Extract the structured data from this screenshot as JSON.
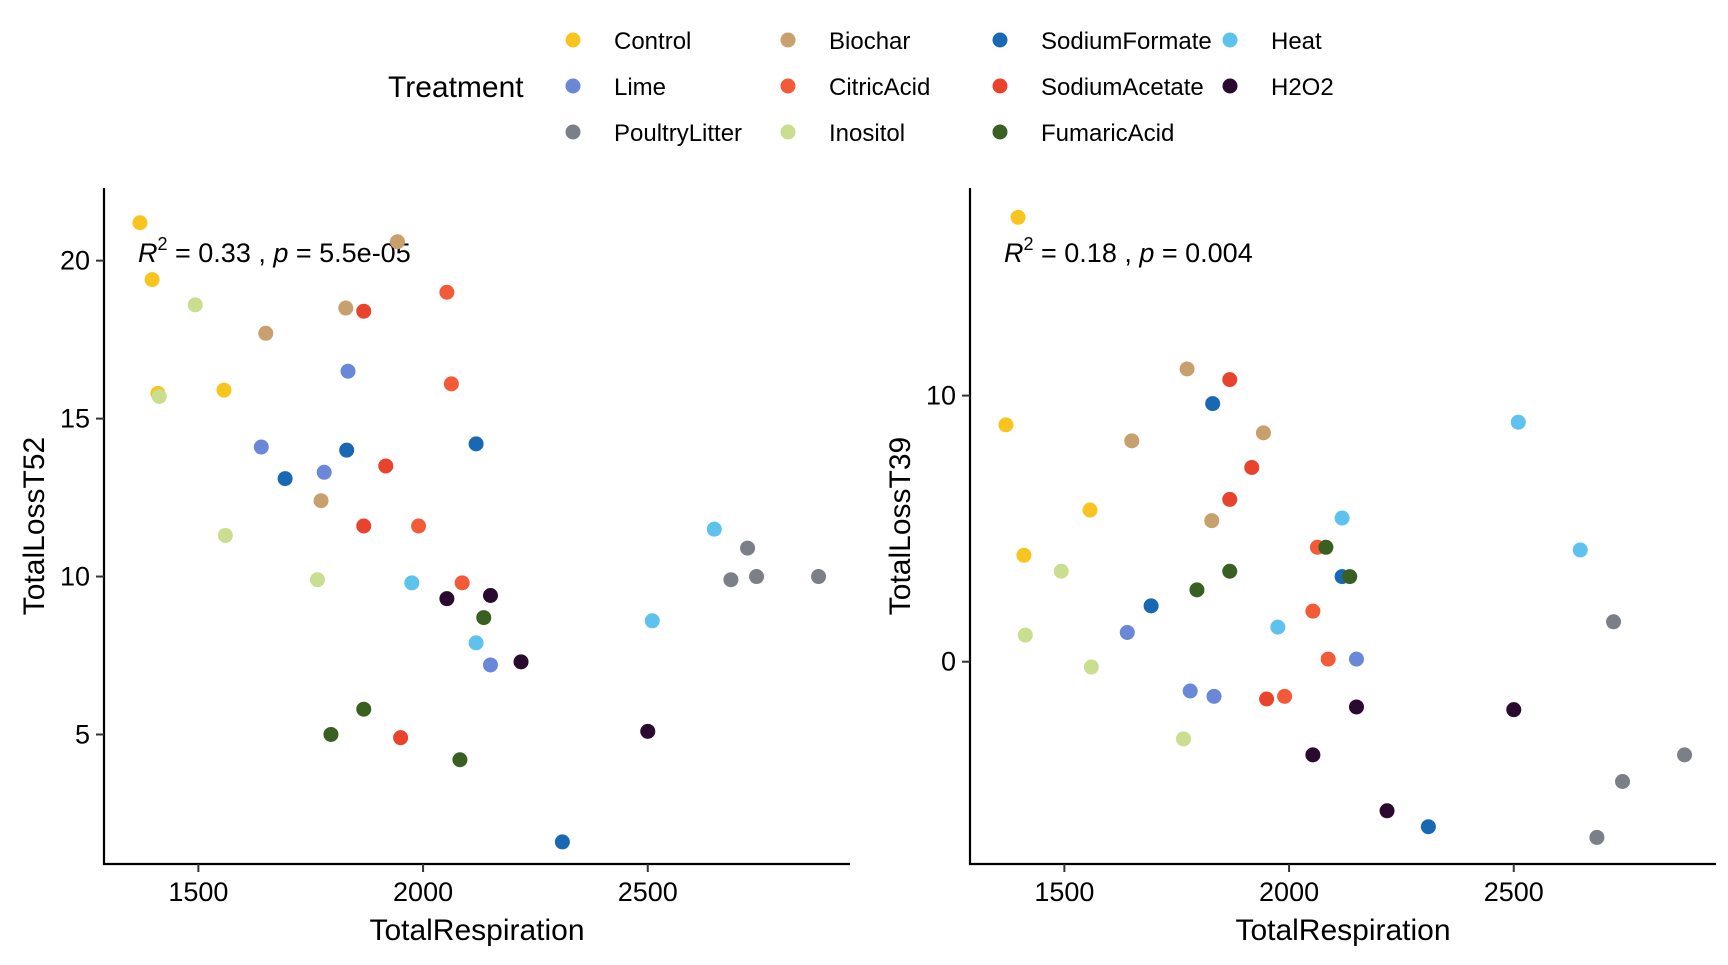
{
  "legend": {
    "title": "Treatment",
    "entries": [
      {
        "name": "Control",
        "color": "#F8C520"
      },
      {
        "name": "Lime",
        "color": "#6A87D8"
      },
      {
        "name": "PoultryLitter",
        "color": "#7A7F88"
      },
      {
        "name": "Biochar",
        "color": "#C7A06E"
      },
      {
        "name": "CitricAcid",
        "color": "#F35A38"
      },
      {
        "name": "Inositol",
        "color": "#C9DE8E"
      },
      {
        "name": "SodiumFormate",
        "color": "#1868B4"
      },
      {
        "name": "SodiumAcetate",
        "color": "#E9432E"
      },
      {
        "name": "FumaricAcid",
        "color": "#3A5F22"
      },
      {
        "name": "Heat",
        "color": "#5EC2EE"
      },
      {
        "name": "H2O2",
        "color": "#2A0A2E"
      }
    ]
  },
  "chart_data": [
    {
      "type": "scatter",
      "xlabel": "TotalRespiration",
      "ylabel": "TotalLossT52",
      "xlim": [
        1290,
        2950
      ],
      "ylim": [
        0.9,
        22.3
      ],
      "xticks": [
        1500,
        2000,
        2500
      ],
      "yticks": [
        5,
        10,
        15,
        20
      ],
      "annotation": {
        "r2_label": "R",
        "r2_sup": "2",
        "r2_value": " = 0.33 , ",
        "p_label": "p",
        "p_value": " = 5.5e-05"
      },
      "points": [
        {
          "x": 1370,
          "y": 21.2,
          "group": "Control"
        },
        {
          "x": 1397,
          "y": 19.4,
          "group": "Control"
        },
        {
          "x": 1557,
          "y": 15.9,
          "group": "Control"
        },
        {
          "x": 1410,
          "y": 15.8,
          "group": "Control"
        },
        {
          "x": 1493,
          "y": 18.6,
          "group": "Inositol"
        },
        {
          "x": 1413,
          "y": 15.7,
          "group": "Inositol"
        },
        {
          "x": 1560,
          "y": 11.3,
          "group": "Inositol"
        },
        {
          "x": 1765,
          "y": 9.9,
          "group": "Inositol"
        },
        {
          "x": 1943,
          "y": 20.6,
          "group": "Biochar"
        },
        {
          "x": 1828,
          "y": 18.5,
          "group": "Biochar"
        },
        {
          "x": 1650,
          "y": 17.7,
          "group": "Biochar"
        },
        {
          "x": 1773,
          "y": 12.4,
          "group": "Biochar"
        },
        {
          "x": 2053,
          "y": 19.0,
          "group": "CitricAcid"
        },
        {
          "x": 2063,
          "y": 16.1,
          "group": "CitricAcid"
        },
        {
          "x": 1990,
          "y": 11.6,
          "group": "CitricAcid"
        },
        {
          "x": 2087,
          "y": 9.8,
          "group": "CitricAcid"
        },
        {
          "x": 1868,
          "y": 18.4,
          "group": "SodiumAcetate"
        },
        {
          "x": 1917,
          "y": 13.5,
          "group": "SodiumAcetate"
        },
        {
          "x": 1868,
          "y": 11.6,
          "group": "SodiumAcetate"
        },
        {
          "x": 1950,
          "y": 4.9,
          "group": "SodiumAcetate"
        },
        {
          "x": 1833,
          "y": 16.5,
          "group": "Lime"
        },
        {
          "x": 1640,
          "y": 14.1,
          "group": "Lime"
        },
        {
          "x": 1780,
          "y": 13.3,
          "group": "Lime"
        },
        {
          "x": 2150,
          "y": 7.2,
          "group": "Lime"
        },
        {
          "x": 1830,
          "y": 14.0,
          "group": "SodiumFormate"
        },
        {
          "x": 1693,
          "y": 13.1,
          "group": "SodiumFormate"
        },
        {
          "x": 2118,
          "y": 14.2,
          "group": "SodiumFormate"
        },
        {
          "x": 2310,
          "y": 1.6,
          "group": "SodiumFormate"
        },
        {
          "x": 1975,
          "y": 9.8,
          "group": "Heat"
        },
        {
          "x": 2118,
          "y": 7.9,
          "group": "Heat"
        },
        {
          "x": 2510,
          "y": 8.6,
          "group": "Heat"
        },
        {
          "x": 2648,
          "y": 11.5,
          "group": "Heat"
        },
        {
          "x": 2722,
          "y": 10.9,
          "group": "PoultryLitter"
        },
        {
          "x": 2685,
          "y": 9.9,
          "group": "PoultryLitter"
        },
        {
          "x": 2742,
          "y": 10.0,
          "group": "PoultryLitter"
        },
        {
          "x": 2880,
          "y": 10.0,
          "group": "PoultryLitter"
        },
        {
          "x": 2135,
          "y": 8.7,
          "group": "FumaricAcid"
        },
        {
          "x": 1868,
          "y": 5.8,
          "group": "FumaricAcid"
        },
        {
          "x": 1795,
          "y": 5.0,
          "group": "FumaricAcid"
        },
        {
          "x": 2082,
          "y": 4.2,
          "group": "FumaricAcid"
        },
        {
          "x": 2150,
          "y": 9.4,
          "group": "H2O2"
        },
        {
          "x": 2053,
          "y": 9.3,
          "group": "H2O2"
        },
        {
          "x": 2218,
          "y": 7.3,
          "group": "H2O2"
        },
        {
          "x": 2500,
          "y": 5.1,
          "group": "H2O2"
        }
      ]
    },
    {
      "type": "scatter",
      "xlabel": "TotalRespiration",
      "ylabel": "TotalLossT39",
      "xlim": [
        1290,
        2950
      ],
      "ylim": [
        -7.6,
        17.8
      ],
      "xticks": [
        1500,
        2000,
        2500
      ],
      "yticks": [
        0,
        10
      ],
      "annotation": {
        "r2_label": "R",
        "r2_sup": "2",
        "r2_value": " = 0.18 , ",
        "p_label": "p",
        "p_value": " = 0.004"
      },
      "points": [
        {
          "x": 1397,
          "y": 16.7,
          "group": "Control"
        },
        {
          "x": 1370,
          "y": 8.9,
          "group": "Control"
        },
        {
          "x": 1557,
          "y": 5.7,
          "group": "Control"
        },
        {
          "x": 1410,
          "y": 4.0,
          "group": "Control"
        },
        {
          "x": 1493,
          "y": 3.4,
          "group": "Inositol"
        },
        {
          "x": 1413,
          "y": 1.0,
          "group": "Inositol"
        },
        {
          "x": 1560,
          "y": -0.2,
          "group": "Inositol"
        },
        {
          "x": 1765,
          "y": -2.9,
          "group": "Inositol"
        },
        {
          "x": 1773,
          "y": 11.0,
          "group": "Biochar"
        },
        {
          "x": 1943,
          "y": 8.6,
          "group": "Biochar"
        },
        {
          "x": 1650,
          "y": 8.3,
          "group": "Biochar"
        },
        {
          "x": 1828,
          "y": 5.3,
          "group": "Biochar"
        },
        {
          "x": 2063,
          "y": 4.3,
          "group": "CitricAcid"
        },
        {
          "x": 2053,
          "y": 1.9,
          "group": "CitricAcid"
        },
        {
          "x": 2087,
          "y": 0.1,
          "group": "CitricAcid"
        },
        {
          "x": 1990,
          "y": -1.3,
          "group": "CitricAcid"
        },
        {
          "x": 1868,
          "y": 10.6,
          "group": "SodiumAcetate"
        },
        {
          "x": 1917,
          "y": 7.3,
          "group": "SodiumAcetate"
        },
        {
          "x": 1868,
          "y": 6.1,
          "group": "SodiumAcetate"
        },
        {
          "x": 1950,
          "y": -1.4,
          "group": "SodiumAcetate"
        },
        {
          "x": 1640,
          "y": 1.1,
          "group": "Lime"
        },
        {
          "x": 2150,
          "y": 0.1,
          "group": "Lime"
        },
        {
          "x": 1780,
          "y": -1.1,
          "group": "Lime"
        },
        {
          "x": 1833,
          "y": -1.3,
          "group": "Lime"
        },
        {
          "x": 1830,
          "y": 9.7,
          "group": "SodiumFormate"
        },
        {
          "x": 2118,
          "y": 3.2,
          "group": "SodiumFormate"
        },
        {
          "x": 1693,
          "y": 2.1,
          "group": "SodiumFormate"
        },
        {
          "x": 2310,
          "y": -6.2,
          "group": "SodiumFormate"
        },
        {
          "x": 2510,
          "y": 9.0,
          "group": "Heat"
        },
        {
          "x": 2118,
          "y": 5.4,
          "group": "Heat"
        },
        {
          "x": 2648,
          "y": 4.2,
          "group": "Heat"
        },
        {
          "x": 1975,
          "y": 1.3,
          "group": "Heat"
        },
        {
          "x": 2722,
          "y": 1.5,
          "group": "PoultryLitter"
        },
        {
          "x": 2880,
          "y": -3.5,
          "group": "PoultryLitter"
        },
        {
          "x": 2742,
          "y": -4.5,
          "group": "PoultryLitter"
        },
        {
          "x": 2685,
          "y": -6.6,
          "group": "PoultryLitter"
        },
        {
          "x": 2082,
          "y": 4.3,
          "group": "FumaricAcid"
        },
        {
          "x": 1868,
          "y": 3.4,
          "group": "FumaricAcid"
        },
        {
          "x": 2135,
          "y": 3.2,
          "group": "FumaricAcid"
        },
        {
          "x": 1795,
          "y": 2.7,
          "group": "FumaricAcid"
        },
        {
          "x": 2150,
          "y": -1.7,
          "group": "H2O2"
        },
        {
          "x": 2500,
          "y": -1.8,
          "group": "H2O2"
        },
        {
          "x": 2053,
          "y": -3.5,
          "group": "H2O2"
        },
        {
          "x": 2218,
          "y": -5.6,
          "group": "H2O2"
        }
      ]
    }
  ]
}
